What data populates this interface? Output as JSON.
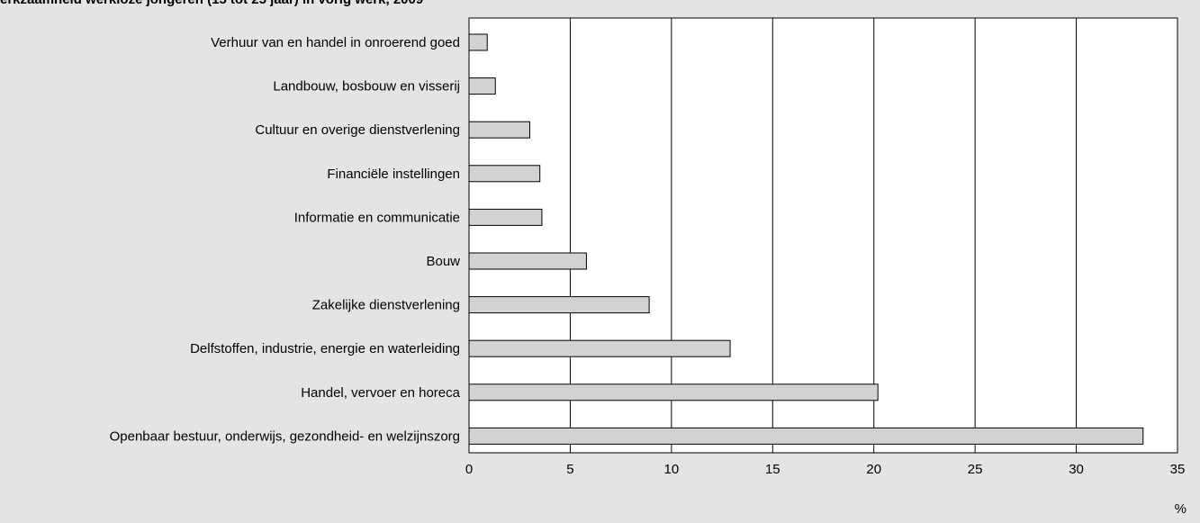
{
  "chart_data": {
    "type": "bar",
    "orientation": "horizontal",
    "title": "erkzaamheid werkloze jongeren (15 tot 25 jaar) in vorig werk, 2009",
    "xlabel": "%",
    "ylabel": "",
    "categories": [
      "Verhuur van en handel in onroerend goed",
      "Landbouw, bosbouw en visserij",
      "Cultuur en overige dienstverlening",
      "Financiële instellingen",
      "Informatie en communicatie",
      "Bouw",
      "Zakelijke dienstverlening",
      "Delfstoffen, industrie, energie en waterleiding",
      "Handel, vervoer en horeca",
      "Openbaar bestuur, onderwijs, gezondheid- en welzijnszorg"
    ],
    "values": [
      0.9,
      1.3,
      3.0,
      3.5,
      3.6,
      5.8,
      8.9,
      12.9,
      20.2,
      33.3
    ],
    "xlim": [
      0,
      35
    ],
    "xticks": [
      "0",
      "5",
      "10",
      "15",
      "20",
      "25",
      "30",
      "35"
    ],
    "grid": "vertical",
    "legend": "none",
    "colors": {
      "background": "#e4e4e2",
      "plot_area": "#ffffff",
      "bar_fill": "#d2d2d2",
      "bar_stroke": "#000000",
      "grid": "#000000"
    }
  }
}
